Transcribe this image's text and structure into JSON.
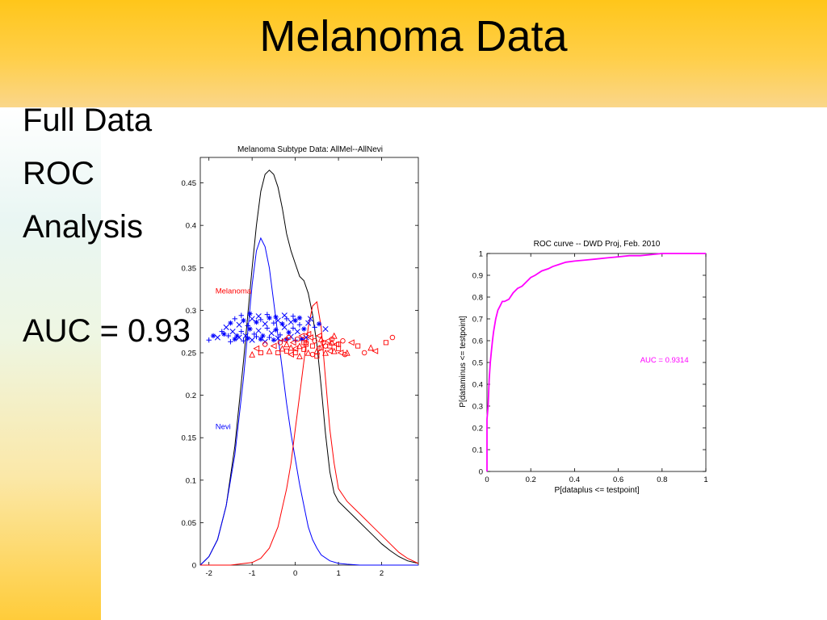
{
  "slide": {
    "title": "Melanoma Data",
    "lines": [
      "Full Data",
      "ROC",
      "Analysis"
    ],
    "auc_text": "AUC = 0.93",
    "colors": {
      "band": "#ffc61a",
      "melanoma": "#ff0000",
      "nevi": "#0000ff",
      "roc": "#ff00ff"
    }
  },
  "chart_data": [
    {
      "type": "line",
      "title": "Melanoma Subtype Data:  AllMel--AllNevi",
      "xlim": [
        -2.2,
        2.85
      ],
      "ylim": [
        0,
        0.48
      ],
      "xticks": [
        -2,
        -1,
        0,
        1,
        2
      ],
      "xtick_labels": [
        "-2",
        "-1",
        "0",
        "1",
        "2"
      ],
      "yticks": [
        0,
        0.05,
        0.1,
        0.15,
        0.2,
        0.25,
        0.3,
        0.35,
        0.4,
        0.45
      ],
      "ytick_labels": [
        "0",
        "0.05",
        "0.1",
        "0.15",
        "0.2",
        "0.25",
        "0.3",
        "0.35",
        "0.4",
        "0.45"
      ],
      "annotations": [
        {
          "text": "Melanoma",
          "x": -1.85,
          "y": 0.32,
          "color": "#ff0000"
        },
        {
          "text": "Nevi",
          "x": -1.85,
          "y": 0.16,
          "color": "#0000ff"
        }
      ],
      "series": [
        {
          "color": "#000000",
          "x": [
            -2.2,
            -2.0,
            -1.8,
            -1.6,
            -1.4,
            -1.2,
            -1.0,
            -0.9,
            -0.8,
            -0.7,
            -0.6,
            -0.5,
            -0.4,
            -0.3,
            -0.2,
            -0.1,
            0.0,
            0.1,
            0.2,
            0.3,
            0.4,
            0.5,
            0.6,
            0.7,
            0.8,
            0.9,
            1.0,
            1.2,
            1.4,
            1.6,
            1.8,
            2.0,
            2.2,
            2.4,
            2.6,
            2.85
          ],
          "values": [
            0.0,
            0.01,
            0.03,
            0.07,
            0.14,
            0.24,
            0.35,
            0.4,
            0.44,
            0.46,
            0.465,
            0.46,
            0.445,
            0.42,
            0.39,
            0.37,
            0.355,
            0.34,
            0.335,
            0.32,
            0.295,
            0.26,
            0.21,
            0.155,
            0.11,
            0.085,
            0.075,
            0.065,
            0.055,
            0.045,
            0.035,
            0.025,
            0.017,
            0.01,
            0.005,
            0.002
          ]
        },
        {
          "name": "Nevi",
          "color": "#0000ff",
          "x": [
            -2.2,
            -2.0,
            -1.8,
            -1.6,
            -1.4,
            -1.2,
            -1.0,
            -0.9,
            -0.8,
            -0.7,
            -0.6,
            -0.5,
            -0.4,
            -0.3,
            -0.2,
            -0.1,
            0.0,
            0.1,
            0.2,
            0.3,
            0.4,
            0.5,
            0.6,
            0.8,
            1.0,
            1.2,
            1.5,
            2.0,
            2.85
          ],
          "values": [
            0.0,
            0.01,
            0.03,
            0.07,
            0.13,
            0.22,
            0.33,
            0.37,
            0.385,
            0.375,
            0.35,
            0.31,
            0.27,
            0.23,
            0.19,
            0.155,
            0.125,
            0.095,
            0.07,
            0.045,
            0.03,
            0.02,
            0.012,
            0.005,
            0.002,
            0.001,
            0.0,
            0.0,
            0.0
          ]
        },
        {
          "name": "Melanoma",
          "color": "#ff0000",
          "x": [
            -2.2,
            -1.5,
            -1.0,
            -0.8,
            -0.6,
            -0.4,
            -0.2,
            -0.1,
            0.0,
            0.1,
            0.2,
            0.3,
            0.4,
            0.5,
            0.6,
            0.7,
            0.8,
            0.9,
            1.0,
            1.2,
            1.4,
            1.6,
            1.8,
            2.0,
            2.2,
            2.4,
            2.6,
            2.85
          ],
          "values": [
            0.0,
            0.0,
            0.003,
            0.008,
            0.02,
            0.045,
            0.09,
            0.12,
            0.16,
            0.2,
            0.24,
            0.28,
            0.305,
            0.31,
            0.28,
            0.22,
            0.16,
            0.12,
            0.09,
            0.075,
            0.065,
            0.055,
            0.045,
            0.035,
            0.025,
            0.015,
            0.008,
            0.002
          ]
        }
      ],
      "scatter": [
        {
          "name": "Nevi",
          "color": "#0000ff",
          "markers": [
            "+",
            "*",
            "x"
          ],
          "x": [
            -2.0,
            -1.9,
            -1.8,
            -1.7,
            -1.65,
            -1.6,
            -1.55,
            -1.5,
            -1.45,
            -1.4,
            -1.35,
            -1.3,
            -1.25,
            -1.2,
            -1.15,
            -1.1,
            -1.05,
            -1.0,
            -0.95,
            -0.9,
            -0.85,
            -0.8,
            -0.75,
            -0.7,
            -0.65,
            -0.6,
            -0.55,
            -0.5,
            -0.45,
            -0.4,
            -0.35,
            -0.3,
            -0.25,
            -0.2,
            -0.15,
            -0.1,
            -0.05,
            0.0,
            0.05,
            0.1,
            0.2,
            0.3,
            0.45,
            0.55,
            0.7,
            -1.5,
            -1.4,
            -1.3,
            -1.2,
            -1.1,
            -1.0,
            -0.9,
            -0.8,
            -0.7,
            -0.6,
            -0.5,
            -0.4,
            -0.3,
            -0.2,
            -0.1,
            0.0,
            0.15,
            0.25,
            -1.25,
            -1.05,
            -0.85,
            -0.65,
            -0.45,
            -0.25,
            -0.05,
            0.1,
            0.35
          ],
          "values": [
            0.265,
            0.27,
            0.268,
            0.275,
            0.272,
            0.28,
            0.27,
            0.285,
            0.275,
            0.29,
            0.27,
            0.283,
            0.275,
            0.288,
            0.27,
            0.282,
            0.278,
            0.29,
            0.272,
            0.286,
            0.276,
            0.289,
            0.27,
            0.284,
            0.279,
            0.291,
            0.273,
            0.285,
            0.277,
            0.288,
            0.271,
            0.284,
            0.28,
            0.29,
            0.274,
            0.286,
            0.279,
            0.288,
            0.275,
            0.283,
            0.278,
            0.285,
            0.28,
            0.284,
            0.278,
            0.263,
            0.266,
            0.268,
            0.264,
            0.267,
            0.265,
            0.269,
            0.266,
            0.263,
            0.268,
            0.265,
            0.267,
            0.264,
            0.266,
            0.269,
            0.265,
            0.266,
            0.268,
            0.294,
            0.296,
            0.293,
            0.295,
            0.292,
            0.294,
            0.293,
            0.291,
            0.29
          ]
        },
        {
          "name": "Melanoma",
          "color": "#ff0000",
          "markers": [
            "triangle-up",
            "triangle-left",
            "square",
            "circle"
          ],
          "x": [
            -1.0,
            -0.9,
            -0.8,
            -0.7,
            -0.6,
            -0.5,
            -0.4,
            -0.35,
            -0.3,
            -0.25,
            -0.2,
            -0.15,
            -0.1,
            -0.05,
            0.0,
            0.05,
            0.1,
            0.15,
            0.2,
            0.25,
            0.3,
            0.35,
            0.4,
            0.45,
            0.5,
            0.55,
            0.6,
            0.65,
            0.7,
            0.75,
            0.8,
            0.85,
            0.9,
            0.95,
            1.0,
            1.1,
            1.2,
            1.3,
            1.45,
            1.6,
            1.75,
            1.85,
            2.1,
            2.25,
            -0.2,
            0.0,
            0.2,
            0.4,
            0.6,
            0.8,
            1.0,
            1.15,
            0.1,
            0.3,
            0.5,
            0.7,
            0.9,
            -0.1,
            0.25,
            0.55,
            0.85,
            1.05
          ],
          "values": [
            0.248,
            0.255,
            0.25,
            0.26,
            0.252,
            0.258,
            0.25,
            0.262,
            0.255,
            0.265,
            0.252,
            0.268,
            0.256,
            0.262,
            0.25,
            0.266,
            0.258,
            0.27,
            0.254,
            0.262,
            0.25,
            0.268,
            0.258,
            0.264,
            0.252,
            0.27,
            0.256,
            0.262,
            0.25,
            0.264,
            0.258,
            0.266,
            0.252,
            0.26,
            0.255,
            0.264,
            0.25,
            0.262,
            0.258,
            0.25,
            0.256,
            0.252,
            0.262,
            0.268,
            0.26,
            0.255,
            0.262,
            0.248,
            0.266,
            0.252,
            0.26,
            0.248,
            0.246,
            0.272,
            0.246,
            0.258,
            0.27,
            0.248,
            0.26,
            0.255,
            0.262,
            0.25
          ]
        }
      ]
    },
    {
      "type": "line",
      "title": "ROC curve -- DWD Proj, Feb. 2010",
      "xlabel": "P[dataplus <= testpoint]",
      "ylabel": "P[dataminus <= testpoint]",
      "xlim": [
        0,
        1
      ],
      "ylim": [
        0,
        1
      ],
      "xticks": [
        0,
        0.2,
        0.4,
        0.6,
        0.8,
        1
      ],
      "xtick_labels": [
        "0",
        "0.2",
        "0.4",
        "0.6",
        "0.8",
        "1"
      ],
      "yticks": [
        0,
        0.1,
        0.2,
        0.3,
        0.4,
        0.5,
        0.6,
        0.7,
        0.8,
        0.9,
        1
      ],
      "ytick_labels": [
        "0",
        "0.1",
        "0.2",
        "0.3",
        "0.4",
        "0.5",
        "0.6",
        "0.7",
        "0.8",
        "0.9",
        "1"
      ],
      "annotation": {
        "text": "AUC = 0.9314",
        "x": 0.7,
        "y": 0.5,
        "color": "#ff00ff"
      },
      "series": [
        {
          "color": "#ff00ff",
          "x": [
            0,
            0.0,
            0.005,
            0.01,
            0.015,
            0.02,
            0.025,
            0.03,
            0.04,
            0.05,
            0.06,
            0.07,
            0.08,
            0.1,
            0.12,
            0.14,
            0.16,
            0.18,
            0.2,
            0.22,
            0.25,
            0.28,
            0.3,
            0.33,
            0.36,
            0.4,
            0.45,
            0.5,
            0.55,
            0.6,
            0.65,
            0.7,
            0.75,
            0.8,
            0.85,
            0.9,
            1.0
          ],
          "values": [
            0,
            0.24,
            0.3,
            0.42,
            0.5,
            0.55,
            0.6,
            0.64,
            0.7,
            0.74,
            0.76,
            0.78,
            0.78,
            0.79,
            0.82,
            0.84,
            0.85,
            0.87,
            0.89,
            0.9,
            0.92,
            0.93,
            0.94,
            0.95,
            0.96,
            0.965,
            0.97,
            0.975,
            0.98,
            0.985,
            0.99,
            0.99,
            0.995,
            1.0,
            1.0,
            1.0,
            1.0
          ]
        }
      ]
    }
  ]
}
